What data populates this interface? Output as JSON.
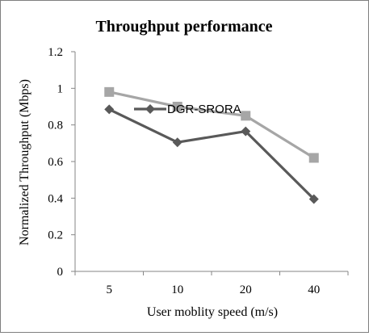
{
  "chart_data": {
    "type": "line",
    "title": "Throughput performance",
    "xlabel": "User moblity speed (m/s)",
    "ylabel": "Normalized Throughput (Mbps)",
    "categories": [
      "5",
      "10",
      "20",
      "40"
    ],
    "ylim": [
      0,
      1.2
    ],
    "yticks": [
      "0",
      "0.2",
      "0.4",
      "0.6",
      "0.8",
      "1",
      "1.2"
    ],
    "grid": false,
    "legend_position": "top-center",
    "series": [
      {
        "values": [
          0.98,
          0.9,
          0.85,
          0.62
        ],
        "color": "#a6a6a6",
        "marker": "square"
      },
      {
        "name": "DGR-SRORA",
        "values": [
          0.885,
          0.705,
          0.765,
          0.395
        ],
        "color": "#595959",
        "marker": "diamond"
      }
    ]
  }
}
